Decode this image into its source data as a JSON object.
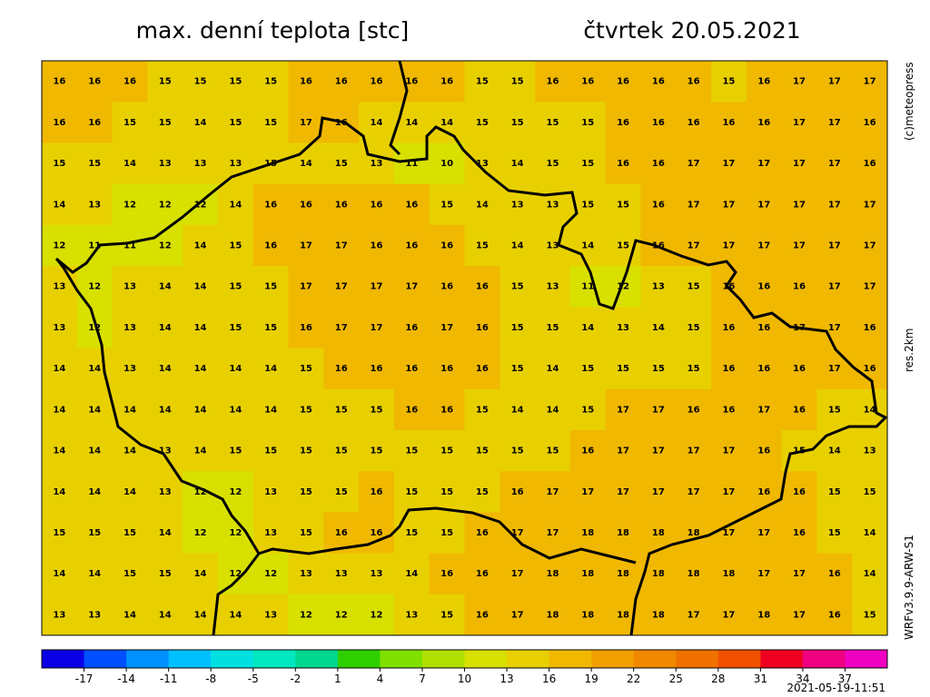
{
  "header": {
    "title": "max. denní teplota [stc]",
    "date": "čtvrtek 20.05.2021"
  },
  "side_labels": {
    "copyright": "(c)meteopress",
    "resolution": "res.2km",
    "model": "WRFv3.9.9-ARW-S1"
  },
  "timestamp": "2021-05-19-11:51",
  "colorbar": {
    "range": [
      -20,
      40
    ],
    "step": 3,
    "colors": [
      "#0a00e6",
      "#0050ff",
      "#0090ff",
      "#00c0ff",
      "#00e0e0",
      "#00e8c0",
      "#00d890",
      "#30d000",
      "#80e000",
      "#b0e000",
      "#d8e000",
      "#e8d000",
      "#f0b800",
      "#f0a000",
      "#f08800",
      "#f07000",
      "#f05000",
      "#f00020",
      "#f00080",
      "#f000c0"
    ],
    "ticks": [
      -17,
      -14,
      -11,
      -8,
      -5,
      -2,
      1,
      4,
      7,
      10,
      13,
      16,
      19,
      22,
      25,
      28,
      31,
      34,
      37
    ]
  },
  "grid": [
    [
      16,
      16,
      16,
      15,
      15,
      15,
      15,
      16,
      16,
      16,
      16,
      16,
      15,
      15,
      16,
      16,
      16,
      16,
      16,
      15,
      16,
      17,
      17,
      17
    ],
    [
      16,
      16,
      15,
      15,
      14,
      15,
      15,
      17,
      16,
      14,
      14,
      14,
      15,
      15,
      15,
      15,
      16,
      16,
      16,
      16,
      16,
      17,
      17,
      16
    ],
    [
      15,
      15,
      14,
      13,
      13,
      13,
      15,
      14,
      15,
      13,
      11,
      10,
      13,
      14,
      15,
      15,
      16,
      16,
      17,
      17,
      17,
      17,
      17,
      16
    ],
    [
      14,
      13,
      12,
      12,
      12,
      14,
      16,
      16,
      16,
      16,
      16,
      15,
      14,
      13,
      13,
      15,
      15,
      16,
      17,
      17,
      17,
      17,
      17,
      17
    ],
    [
      12,
      11,
      11,
      12,
      14,
      15,
      16,
      17,
      17,
      16,
      16,
      16,
      15,
      14,
      13,
      14,
      15,
      16,
      17,
      17,
      17,
      17,
      17,
      17
    ],
    [
      13,
      12,
      13,
      14,
      14,
      15,
      15,
      17,
      17,
      17,
      17,
      16,
      16,
      15,
      13,
      11,
      12,
      13,
      15,
      16,
      16,
      16,
      17,
      17
    ],
    [
      13,
      12,
      13,
      14,
      14,
      15,
      15,
      16,
      17,
      17,
      16,
      17,
      16,
      15,
      15,
      14,
      13,
      14,
      15,
      16,
      16,
      17,
      17,
      16
    ],
    [
      14,
      14,
      13,
      14,
      14,
      14,
      14,
      15,
      16,
      16,
      16,
      16,
      16,
      15,
      14,
      15,
      15,
      15,
      15,
      16,
      16,
      16,
      17,
      16
    ],
    [
      14,
      14,
      14,
      14,
      14,
      14,
      14,
      15,
      15,
      15,
      16,
      16,
      15,
      14,
      14,
      15,
      17,
      17,
      16,
      16,
      17,
      16,
      15,
      14
    ],
    [
      14,
      14,
      14,
      13,
      14,
      15,
      15,
      15,
      15,
      15,
      15,
      15,
      15,
      15,
      15,
      16,
      17,
      17,
      17,
      17,
      16,
      15,
      14,
      13
    ],
    [
      14,
      14,
      14,
      13,
      12,
      12,
      13,
      15,
      15,
      16,
      15,
      15,
      15,
      16,
      17,
      17,
      17,
      17,
      17,
      17,
      16,
      16,
      15,
      15
    ],
    [
      15,
      15,
      15,
      14,
      12,
      12,
      13,
      15,
      16,
      16,
      15,
      15,
      16,
      17,
      17,
      18,
      18,
      18,
      18,
      17,
      17,
      16,
      15,
      14
    ],
    [
      14,
      14,
      15,
      15,
      14,
      12,
      12,
      13,
      13,
      13,
      14,
      16,
      16,
      17,
      18,
      18,
      18,
      18,
      18,
      18,
      17,
      17,
      16,
      14
    ],
    [
      13,
      13,
      14,
      14,
      14,
      14,
      13,
      12,
      12,
      12,
      13,
      15,
      16,
      17,
      18,
      18,
      18,
      18,
      17,
      17,
      18,
      17,
      16,
      15
    ]
  ]
}
